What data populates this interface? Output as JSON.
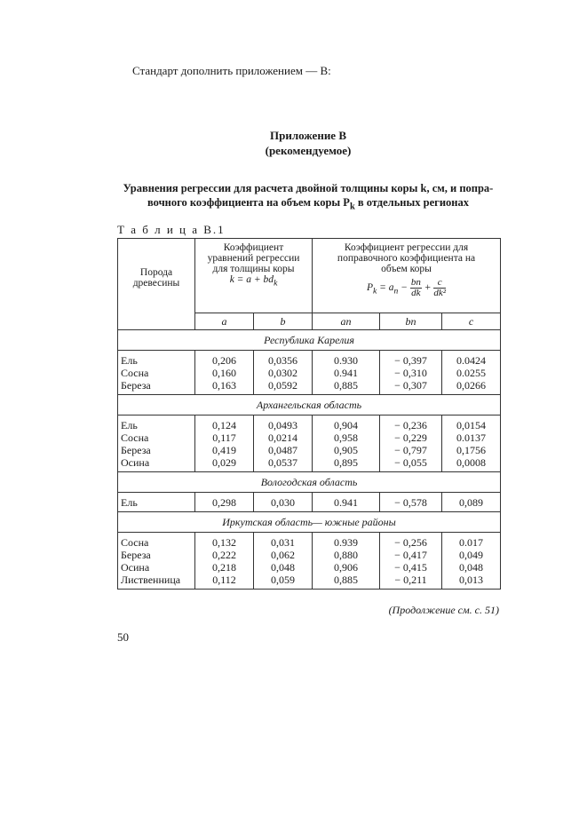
{
  "intro": "Стандарт дополнить приложением — В:",
  "appendix": {
    "title": "Приложение В",
    "subtitle": "(рекомендуемое)"
  },
  "heading": {
    "line1": "Уравнения регрессии для расчета двойной толщины коры k, см, и попра-",
    "line2": "вочного коэффициента на объем коры P",
    "line2_sub": "k",
    "line2_end": " в отдельных регионах"
  },
  "table_caption": "Т а б л и ц а  В.1",
  "table": {
    "col_species": "Порода древесины",
    "group1": {
      "text": "Коэффициент уравнений регрессии для толщины коры",
      "formula": "k = a + bd",
      "formula_sub": "k"
    },
    "group2": {
      "text": "Коэффициент  регрессии для поправочного коэффициента на объем коры",
      "formula_lhs": "P",
      "formula_lhs_sub": "k",
      "formula_mid": " = a",
      "formula_mid_sub": "п",
      "frac1_num": "bп",
      "frac1_den": "dk",
      "frac2_num": "c",
      "frac2_den": "dk²"
    },
    "subcols": [
      "a",
      "b",
      "aп",
      "bп",
      "c"
    ],
    "regions": [
      {
        "name": "Республика  Карелия",
        "rows": [
          [
            "Ель",
            "0,206",
            "0,0356",
            "0.930",
            "− 0,397",
            "0.0424"
          ],
          [
            "Сосна",
            "0,160",
            "0,0302",
            "0.941",
            "− 0,310",
            "0.0255"
          ],
          [
            "Береза",
            "0,163",
            "0,0592",
            "0,885",
            "− 0,307",
            "0,0266"
          ]
        ]
      },
      {
        "name": "Архангельская область",
        "rows": [
          [
            "Ель",
            "0,124",
            "0,0493",
            "0,904",
            "− 0,236",
            "0,0154"
          ],
          [
            "Сосна",
            "0,117",
            "0,0214",
            "0,958",
            "− 0,229",
            "0.0137"
          ],
          [
            "Береза",
            "0,419",
            "0,0487",
            "0,905",
            "− 0,797",
            "0,1756"
          ],
          [
            "Осина",
            "0,029",
            "0,0537",
            "0,895",
            "− 0,055",
            "0,0008"
          ]
        ]
      },
      {
        "name": "Вологодская область",
        "rows": [
          [
            "Ель",
            "0,298",
            "0,030",
            "0.941",
            "− 0,578",
            "0,089"
          ]
        ]
      },
      {
        "name": "Иркутская область— южные районы",
        "rows": [
          [
            "Сосна",
            "0,132",
            "0,031",
            "0.939",
            "− 0,256",
            "0.017"
          ],
          [
            "Береза",
            "0,222",
            "0,062",
            "0,880",
            "− 0,417",
            "0,049"
          ],
          [
            "Осина",
            "0,218",
            "0,048",
            "0,906",
            "− 0,415",
            "0,048"
          ],
          [
            "Лиственница",
            "0,112",
            "0,059",
            "0,885",
            "− 0,211",
            "0,013"
          ]
        ]
      }
    ]
  },
  "continuation": "(Продолжение см. с. 51)",
  "page_number": "50"
}
